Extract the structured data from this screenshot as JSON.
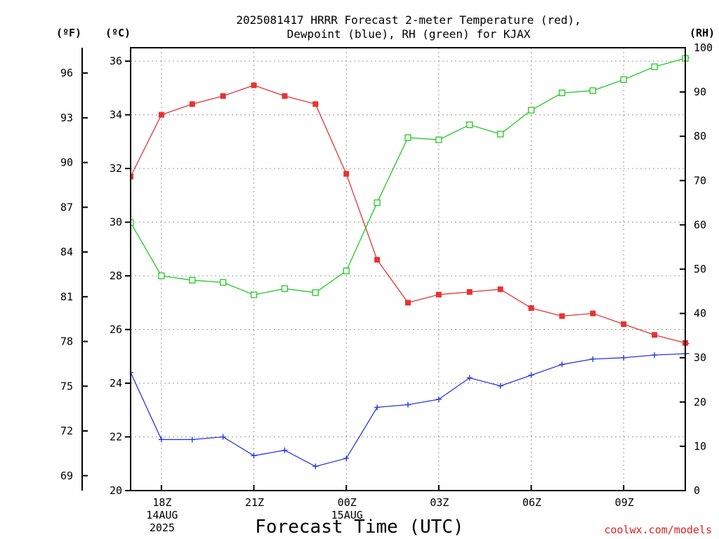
{
  "chart_data": {
    "type": "line",
    "title_lines": [
      "2025081417 HRRR Forecast 2-meter Temperature (red),",
      "Dewpoint (blue), RH (green) for KJAX"
    ],
    "xlabel": "Forecast Time (UTC)",
    "left_axis_units": [
      "(ºF)",
      "(ºC)"
    ],
    "right_axis_unit": "(RH)",
    "credit": "coolwx.com/models",
    "grid": true,
    "x_hours": [
      17,
      18,
      19,
      20,
      21,
      22,
      23,
      24,
      25,
      26,
      27,
      28,
      29,
      30,
      31,
      32,
      33,
      34,
      35,
      36
    ],
    "x_ticks": [
      {
        "hour": 18,
        "lines": [
          "18Z",
          "14AUG",
          "2025"
        ]
      },
      {
        "hour": 21,
        "lines": [
          "21Z"
        ]
      },
      {
        "hour": 24,
        "lines": [
          "00Z",
          "15AUG"
        ]
      },
      {
        "hour": 27,
        "lines": [
          "03Z"
        ]
      },
      {
        "hour": 30,
        "lines": [
          "06Z"
        ]
      },
      {
        "hour": 33,
        "lines": [
          "09Z"
        ]
      }
    ],
    "xlim": [
      17,
      35
    ],
    "celsius_axis": {
      "range": [
        20,
        36.5
      ],
      "ticks": [
        "20",
        "22",
        "24",
        "26",
        "28",
        "30",
        "32",
        "34",
        "36"
      ]
    },
    "fahrenheit_axis": {
      "ticks": [
        "69",
        "72",
        "75",
        "78",
        "81",
        "84",
        "87",
        "90",
        "93",
        "96"
      ]
    },
    "rh_axis": {
      "range": [
        0,
        100
      ],
      "ticks": [
        "0",
        "10",
        "20",
        "30",
        "40",
        "50",
        "60",
        "70",
        "80",
        "90",
        "100"
      ]
    },
    "series": [
      {
        "name": "Temperature",
        "axis": "celsius",
        "color": "#e83232",
        "marker": "filled-square",
        "x": [
          17,
          18,
          19,
          20,
          21,
          22,
          23,
          24,
          25,
          26,
          27,
          28,
          29,
          30,
          31,
          32,
          33,
          34,
          35,
          36
        ],
        "values": [
          31.7,
          34.0,
          34.4,
          34.7,
          35.1,
          34.7,
          34.4,
          31.8,
          28.6,
          27.0,
          27.3,
          27.4,
          27.5,
          26.8,
          26.5,
          26.6,
          26.2,
          25.8,
          25.5,
          25.3
        ]
      },
      {
        "name": "Dewpoint",
        "axis": "celsius",
        "color": "#2a3ae0",
        "marker": "plus",
        "x": [
          17,
          18,
          19,
          20,
          21,
          22,
          23,
          24,
          25,
          26,
          27,
          28,
          29,
          30,
          31,
          32,
          33,
          34,
          35,
          36
        ],
        "values": [
          24.4,
          21.9,
          21.9,
          22.0,
          21.3,
          21.5,
          20.9,
          21.2,
          23.1,
          23.2,
          23.4,
          24.2,
          23.9,
          24.3,
          24.7,
          24.9,
          24.95,
          25.05,
          25.1,
          25.15
        ]
      },
      {
        "name": "RH",
        "axis": "rh",
        "color": "#22c922",
        "marker": "open-square",
        "x": [
          17,
          18,
          19,
          20,
          21,
          22,
          23,
          24,
          25,
          26,
          27,
          28,
          29,
          30,
          31,
          32,
          33,
          34,
          35,
          36
        ],
        "values": [
          60.5,
          48.5,
          47.5,
          47.0,
          44.2,
          45.6,
          44.7,
          49.6,
          65.0,
          79.7,
          79.2,
          82.6,
          80.5,
          85.9,
          89.8,
          90.3,
          92.8,
          95.7,
          97.6,
          99.0
        ]
      }
    ]
  }
}
